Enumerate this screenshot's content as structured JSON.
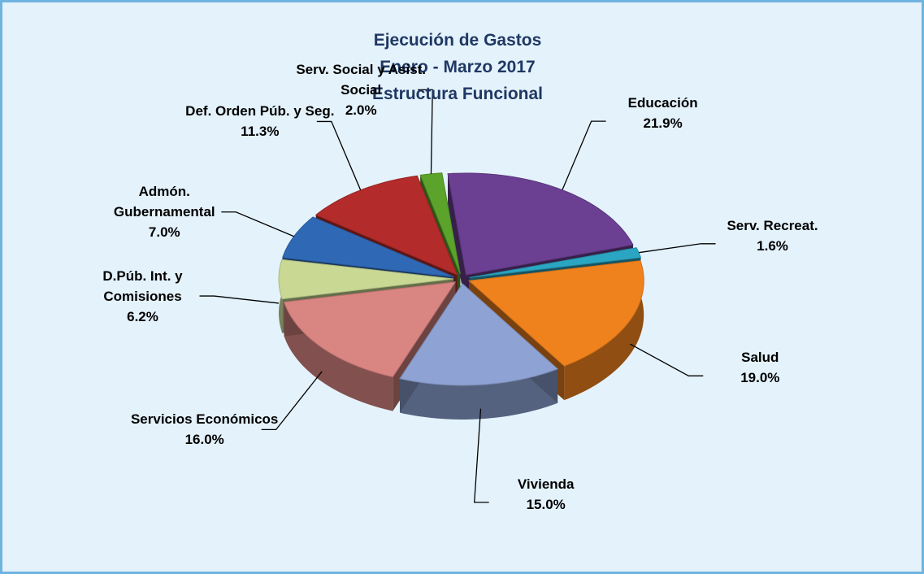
{
  "chart_data": {
    "type": "pie",
    "title_lines": [
      "Ejecución de Gastos",
      "Enero - Marzo 2017",
      "Estructura Funcional"
    ],
    "categories": [
      "Educación",
      "Serv. Recreat.",
      "Salud",
      "Vivienda",
      "Servicios Económicos",
      "D.Púb. Int. y Comisiones",
      "Admón. Gubernamental",
      "Def. Orden Púb. y Seg.",
      "Serv. Social y Asist. Social"
    ],
    "values": [
      21.9,
      1.6,
      19.0,
      15.0,
      16.0,
      6.2,
      7.0,
      11.3,
      2.0
    ],
    "value_labels": [
      "21.9%",
      "1.6%",
      "19.0%",
      "15.0%",
      "16.0%",
      "6.2%",
      "7.0%",
      "11.3%",
      "2.0%"
    ],
    "colors": [
      "#6b3f92",
      "#2ba6c2",
      "#f0821e",
      "#8ea3d3",
      "#d98582",
      "#c9d994",
      "#2f69b6",
      "#b32b2b",
      "#5ba32b"
    ]
  }
}
